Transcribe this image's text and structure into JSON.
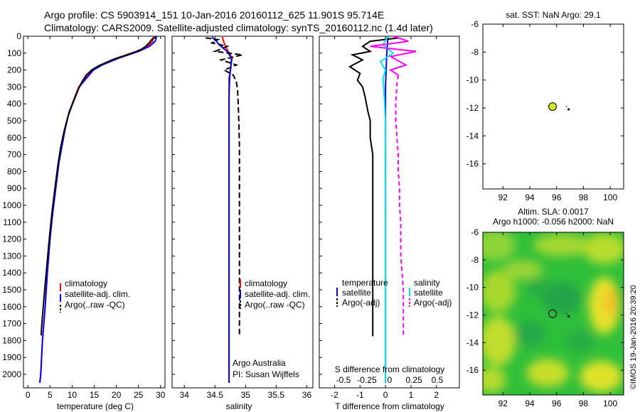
{
  "header": {
    "line1": "Argo profile: CS 5903914_151 10-Jan-2016 20160112_625 11.901S 95.714E",
    "line2": "Climatology: CARS2009. Satellite-adjusted climatology: synTS_20160112.nc (1.4d later)"
  },
  "watermark": "©IMOS 19-Jan-2016 20:39:20",
  "colors": {
    "climatology": "#ff0000",
    "satellite": "#0000ff",
    "argo": "#000000",
    "satellite_s": "#00e5e5",
    "argo_s": "#ff00ff",
    "map_green": "#2fbf3a",
    "map_yellow": "#e6e62a",
    "argo_marker": "#d2e61e"
  },
  "chart_data": [
    {
      "type": "line",
      "name": "temperature-panel",
      "xlabel": "temperature (deg C)",
      "ylabel": "",
      "xlim": [
        -1,
        31
      ],
      "ylim": [
        2080,
        0
      ],
      "xticks": [
        0,
        5,
        10,
        15,
        20,
        25,
        30
      ],
      "yticks": [
        0,
        100,
        200,
        300,
        400,
        500,
        600,
        700,
        800,
        900,
        1000,
        1100,
        1200,
        1300,
        1400,
        1500,
        1600,
        1700,
        1800,
        1900,
        2000
      ],
      "legend": [
        "climatology",
        "satellite-adj. clim.",
        "Argo(..raw -QC)"
      ],
      "series": [
        {
          "name": "climatology",
          "color": "#ff0000",
          "points": [
            [
              28.4,
              0
            ],
            [
              28.2,
              30
            ],
            [
              27.0,
              60
            ],
            [
              24.5,
              90
            ],
            [
              20.0,
              130
            ],
            [
              16.5,
              170
            ],
            [
              14.5,
              200
            ],
            [
              13.0,
              250
            ],
            [
              11.5,
              300
            ],
            [
              10.3,
              380
            ],
            [
              9.3,
              450
            ],
            [
              8.4,
              550
            ],
            [
              7.7,
              650
            ],
            [
              7.0,
              750
            ],
            [
              6.3,
              900
            ],
            [
              5.6,
              1050
            ],
            [
              5.0,
              1200
            ],
            [
              4.4,
              1400
            ],
            [
              3.9,
              1600
            ],
            [
              3.3,
              1800
            ],
            [
              2.9,
              2000
            ],
            [
              2.7,
              2050
            ]
          ]
        },
        {
          "name": "satellite-adj. clim.",
          "color": "#0000ff",
          "points": [
            [
              29.1,
              0
            ],
            [
              28.8,
              30
            ],
            [
              27.5,
              60
            ],
            [
              25.0,
              90
            ],
            [
              20.5,
              130
            ],
            [
              16.8,
              170
            ],
            [
              14.8,
              200
            ],
            [
              13.2,
              250
            ],
            [
              11.6,
              300
            ],
            [
              10.4,
              380
            ],
            [
              9.3,
              450
            ],
            [
              8.4,
              550
            ],
            [
              7.7,
              650
            ],
            [
              7.0,
              750
            ],
            [
              6.3,
              900
            ],
            [
              5.6,
              1050
            ],
            [
              5.0,
              1200
            ],
            [
              4.4,
              1400
            ],
            [
              3.9,
              1600
            ],
            [
              3.3,
              1800
            ],
            [
              2.9,
              2000
            ],
            [
              2.7,
              2050
            ]
          ]
        },
        {
          "name": "Argo(..raw -QC)",
          "color": "#000000",
          "points": [
            [
              28.9,
              5
            ],
            [
              28.0,
              20
            ],
            [
              27.4,
              40
            ],
            [
              26.6,
              60
            ],
            [
              25.6,
              80
            ],
            [
              22.5,
              110
            ],
            [
              19.0,
              140
            ],
            [
              16.0,
              175
            ],
            [
              14.4,
              200
            ],
            [
              13.2,
              230
            ],
            [
              12.2,
              270
            ],
            [
              11.3,
              320
            ],
            [
              10.1,
              400
            ],
            [
              9.0,
              480
            ],
            [
              8.2,
              560
            ],
            [
              7.4,
              660
            ],
            [
              6.8,
              760
            ],
            [
              6.1,
              900
            ],
            [
              5.5,
              1030
            ],
            [
              4.9,
              1180
            ],
            [
              4.3,
              1350
            ],
            [
              3.8,
              1500
            ],
            [
              3.4,
              1620
            ],
            [
              3.1,
              1720
            ],
            [
              3.0,
              1770
            ]
          ]
        }
      ]
    },
    {
      "type": "line",
      "name": "salinity-panel",
      "xlabel": "salinity",
      "xlim": [
        33.8,
        36.1
      ],
      "ylim": [
        2080,
        0
      ],
      "xticks": [
        34,
        34.5,
        35,
        35.5,
        36
      ],
      "legend": [
        "climatology",
        "satellite-adj. clim.",
        "Argo(..raw -QC)"
      ],
      "annotations": [
        "Argo Australia",
        "PI: Susan Wijffels"
      ],
      "series": [
        {
          "name": "climatology",
          "color": "#ff0000",
          "points": [
            [
              34.62,
              5
            ],
            [
              34.65,
              40
            ],
            [
              34.7,
              80
            ],
            [
              34.78,
              130
            ],
            [
              34.76,
              180
            ],
            [
              34.73,
              250
            ],
            [
              34.73,
              350
            ],
            [
              34.73,
              500
            ],
            [
              34.73,
              800
            ],
            [
              34.73,
              1200
            ],
            [
              34.73,
              1600
            ],
            [
              34.73,
              2050
            ]
          ]
        },
        {
          "name": "satellite-adj. clim.",
          "color": "#0000ff",
          "points": [
            [
              34.45,
              5
            ],
            [
              34.52,
              30
            ],
            [
              34.6,
              60
            ],
            [
              34.7,
              90
            ],
            [
              34.77,
              130
            ],
            [
              34.76,
              180
            ],
            [
              34.74,
              250
            ],
            [
              34.73,
              350
            ],
            [
              34.73,
              500
            ],
            [
              34.73,
              800
            ],
            [
              34.73,
              1200
            ],
            [
              34.73,
              1600
            ],
            [
              34.73,
              2050
            ]
          ]
        },
        {
          "name": "Argo(..raw -QC)",
          "color": "#000000",
          "points": [
            [
              34.35,
              10
            ],
            [
              34.55,
              20
            ],
            [
              34.45,
              40
            ],
            [
              34.7,
              60
            ],
            [
              34.5,
              90
            ],
            [
              34.95,
              110
            ],
            [
              34.6,
              140
            ],
            [
              34.85,
              170
            ],
            [
              34.65,
              200
            ],
            [
              34.8,
              230
            ],
            [
              34.85,
              270
            ],
            [
              34.87,
              320
            ],
            [
              34.88,
              400
            ],
            [
              34.89,
              500
            ],
            [
              34.9,
              650
            ],
            [
              34.9,
              800
            ],
            [
              34.9,
              1000
            ],
            [
              34.9,
              1200
            ],
            [
              34.9,
              1400
            ],
            [
              34.9,
              1600
            ],
            [
              34.9,
              1770
            ]
          ]
        }
      ]
    },
    {
      "type": "line",
      "name": "difference-panel",
      "xlabel": "T difference from climatology",
      "xlabel_top": "S difference from climatology",
      "xlim": [
        -2.6,
        2.9
      ],
      "ylim": [
        2080,
        0
      ],
      "xticks": [
        -2,
        -1,
        0,
        1,
        2
      ],
      "xticks_top": [
        "-0.5",
        "-0.25",
        "0",
        "0.25",
        "0.5"
      ],
      "legend_t_title": "temperature",
      "legend_s_title": "salinity",
      "legend_t": [
        "satellite",
        "Argo(-adj)"
      ],
      "legend_s": [
        "satellite",
        "Argo(-adj)"
      ],
      "series": [
        {
          "name": "T satellite",
          "color": "#0000ff",
          "points": [
            [
              0.1,
              0
            ],
            [
              0.05,
              100
            ],
            [
              0.0,
              300
            ],
            [
              0.0,
              800
            ],
            [
              0.0,
              1500
            ],
            [
              0.0,
              2050
            ]
          ]
        },
        {
          "name": "T Argo(-adj)",
          "color": "#000000",
          "points": [
            [
              0.5,
              10
            ],
            [
              -0.6,
              30
            ],
            [
              -0.9,
              60
            ],
            [
              -0.6,
              90
            ],
            [
              -1.3,
              110
            ],
            [
              -0.9,
              140
            ],
            [
              -1.4,
              180
            ],
            [
              -1.0,
              220
            ],
            [
              -1.1,
              260
            ],
            [
              -0.9,
              300
            ],
            [
              -0.8,
              360
            ],
            [
              -0.7,
              440
            ],
            [
              -0.6,
              500
            ],
            [
              -0.6,
              600
            ],
            [
              -0.5,
              700
            ],
            [
              -0.5,
              800
            ],
            [
              -0.5,
              900
            ],
            [
              -0.5,
              1000
            ],
            [
              -0.5,
              1100
            ],
            [
              -0.5,
              1200
            ],
            [
              -0.5,
              1300
            ],
            [
              -0.5,
              1400
            ],
            [
              -0.5,
              1500
            ],
            [
              -0.5,
              1600
            ],
            [
              -0.5,
              1700
            ],
            [
              -0.5,
              1775
            ]
          ]
        },
        {
          "name": "S satellite",
          "color": "#00e5e5",
          "points": [
            [
              0.1,
              0
            ],
            [
              -0.1,
              50
            ],
            [
              0.3,
              100
            ],
            [
              -0.2,
              150
            ],
            [
              0.0,
              200
            ],
            [
              -0.1,
              250
            ],
            [
              -0.05,
              350
            ],
            [
              0.0,
              500
            ],
            [
              0.0,
              800
            ],
            [
              0.0,
              1200
            ],
            [
              0.0,
              1600
            ],
            [
              0.0,
              2050
            ]
          ]
        },
        {
          "name": "S Argo(-adj)",
          "color": "#ff00ff",
          "dashed_below": 250,
          "points": [
            [
              0.3,
              0
            ],
            [
              0.9,
              30
            ],
            [
              -0.6,
              60
            ],
            [
              1.2,
              90
            ],
            [
              0.2,
              120
            ],
            [
              0.8,
              170
            ],
            [
              0.2,
              200
            ],
            [
              0.5,
              230
            ],
            [
              0.45,
              280
            ],
            [
              0.4,
              400
            ],
            [
              0.4,
              500
            ],
            [
              0.45,
              600
            ],
            [
              0.5,
              700
            ],
            [
              0.5,
              800
            ],
            [
              0.55,
              900
            ],
            [
              0.55,
              1000
            ],
            [
              0.6,
              1100
            ],
            [
              0.6,
              1200
            ],
            [
              0.6,
              1300
            ],
            [
              0.65,
              1400
            ],
            [
              0.7,
              1500
            ],
            [
              0.7,
              1600
            ],
            [
              0.7,
              1700
            ],
            [
              0.7,
              1770
            ]
          ]
        }
      ]
    },
    {
      "type": "scatter",
      "name": "sst-map",
      "title": "sat. SST: NaN Argo: 29.1",
      "xlim": [
        90.5,
        101
      ],
      "ylim": [
        -17.8,
        -6
      ],
      "xticks": [
        92,
        94,
        96,
        98,
        100
      ],
      "yticks": [
        -6,
        -8,
        -10,
        -12,
        -14,
        -16
      ],
      "points": [
        {
          "label": "Argo",
          "x": 95.7,
          "y": -11.9
        },
        {
          "label": "track",
          "x": 96.9,
          "y": -12.1
        }
      ]
    },
    {
      "type": "heatmap",
      "name": "sla-map",
      "title_line1": "Altim. SLA: 0.0017",
      "title_line2": "Argo h1000: -0.056 h2000: NaN",
      "xlim": [
        90.5,
        101
      ],
      "ylim": [
        -17.8,
        -6
      ],
      "xticks": [
        92,
        94,
        96,
        98,
        100
      ],
      "yticks": [
        -6,
        -8,
        -10,
        -12,
        -14,
        -16
      ],
      "points": [
        {
          "label": "Argo",
          "x": 95.7,
          "y": -11.9
        },
        {
          "label": "track",
          "x": 96.9,
          "y": -12.1
        }
      ]
    }
  ]
}
